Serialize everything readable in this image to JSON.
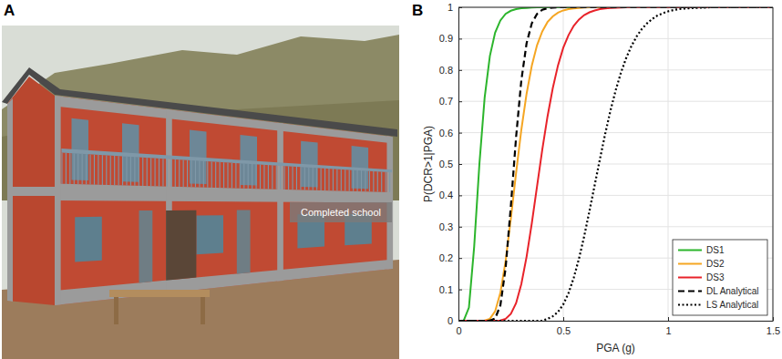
{
  "panel_labels": [
    "A",
    "B"
  ],
  "photo": {
    "caption": "Completed school"
  },
  "chart_data": {
    "type": "line",
    "x_label": "PGA (g)",
    "y_label": "P(DCR>1|PGA)",
    "x": [
      0,
      0.025,
      0.05,
      0.075,
      0.1,
      0.125,
      0.15,
      0.175,
      0.2,
      0.225,
      0.25,
      0.275,
      0.3,
      0.325,
      0.35,
      0.375,
      0.4,
      0.425,
      0.45,
      0.475,
      0.5,
      0.525,
      0.55,
      0.575,
      0.6,
      0.625,
      0.65,
      0.675,
      0.7,
      0.725,
      0.75,
      0.775,
      0.8,
      0.825,
      0.85,
      0.875,
      0.9,
      0.925,
      0.95,
      0.975,
      1,
      1.025,
      1.05,
      1.075,
      1.1,
      1.125,
      1.15,
      1.175,
      1.2,
      1.225,
      1.25,
      1.275,
      1.3,
      1.325,
      1.35,
      1.375,
      1.4,
      1.425,
      1.45,
      1.475,
      1.5
    ],
    "series": [
      {
        "name": "DS1",
        "color": "#2cb52c",
        "line_style": "solid",
        "values": [
          0,
          0.0003,
          0.042,
          0.236,
          0.5,
          0.712,
          0.845,
          0.919,
          0.958,
          0.979,
          0.989,
          0.994,
          0.997,
          0.998,
          0.999,
          1,
          1,
          1,
          1,
          1,
          1,
          1,
          1,
          1,
          1,
          1,
          1,
          1,
          1,
          1,
          1,
          1,
          1,
          1,
          1,
          1,
          1,
          1,
          1,
          1,
          1,
          1,
          1,
          1,
          1,
          1,
          1,
          1,
          1,
          1,
          1,
          1,
          1,
          1,
          1,
          1,
          1,
          1,
          1,
          1,
          1
        ]
      },
      {
        "name": "DS2",
        "color": "#f5a623",
        "line_style": "solid",
        "values": [
          0,
          0,
          0,
          0,
          0,
          0.0006,
          0.006,
          0.03,
          0.089,
          0.191,
          0.326,
          0.471,
          0.609,
          0.724,
          0.814,
          0.879,
          0.923,
          0.953,
          0.971,
          0.983,
          0.99,
          0.994,
          0.9965,
          0.998,
          0.999,
          1,
          1,
          1,
          1,
          1,
          1,
          1,
          1,
          1,
          1,
          1,
          1,
          1,
          1,
          1,
          1,
          1,
          1,
          1,
          1,
          1,
          1,
          1,
          1,
          1,
          1,
          1,
          1,
          1,
          1,
          1,
          1,
          1,
          1,
          1,
          1
        ]
      },
      {
        "name": "DS3",
        "color": "#e8232a",
        "line_style": "solid",
        "values": [
          0,
          0,
          0,
          0,
          0,
          0,
          0,
          0,
          0.001,
          0.006,
          0.022,
          0.056,
          0.117,
          0.204,
          0.311,
          0.429,
          0.546,
          0.652,
          0.742,
          0.815,
          0.871,
          0.911,
          0.941,
          0.961,
          0.975,
          0.984,
          0.99,
          0.994,
          0.996,
          0.9976,
          0.9986,
          0.999,
          1,
          1,
          1,
          1,
          1,
          1,
          1,
          1,
          1,
          1,
          1,
          1,
          1,
          1,
          1,
          1,
          1,
          1,
          1,
          1,
          1,
          1,
          1,
          1,
          1,
          1,
          1,
          1,
          1
        ]
      },
      {
        "name": "DL Analytical",
        "color": "#000000",
        "line_style": "dashed",
        "values": [
          0,
          0,
          0,
          0,
          0,
          0,
          0.0004,
          0.007,
          0.049,
          0.168,
          0.366,
          0.586,
          0.767,
          0.885,
          0.949,
          0.979,
          0.992,
          0.997,
          0.999,
          1,
          1,
          1,
          1,
          1,
          1,
          1,
          1,
          1,
          1,
          1,
          1,
          1,
          1,
          1,
          1,
          1,
          1,
          1,
          1,
          1,
          1,
          1,
          1,
          1,
          1,
          1,
          1,
          1,
          1,
          1,
          1,
          1,
          1,
          1,
          1,
          1,
          1,
          1,
          1,
          1,
          1
        ]
      },
      {
        "name": "LS Analytical",
        "color": "#000000",
        "line_style": "dotted",
        "values": [
          0,
          0,
          0,
          0,
          0,
          0,
          0,
          0,
          0,
          0,
          0,
          0,
          0,
          0,
          0,
          0,
          0,
          0.006,
          0.014,
          0.028,
          0.052,
          0.088,
          0.137,
          0.198,
          0.27,
          0.35,
          0.433,
          0.516,
          0.596,
          0.67,
          0.735,
          0.791,
          0.838,
          0.876,
          0.907,
          0.931,
          0.949,
          0.963,
          0.974,
          0.981,
          0.987,
          0.991,
          0.994,
          0.9956,
          0.997,
          0.998,
          0.9986,
          0.999,
          1,
          1,
          1,
          1,
          1,
          1,
          1,
          1,
          1,
          1,
          1,
          1,
          1
        ]
      }
    ],
    "xlim": [
      0,
      1.5
    ],
    "ylim": [
      0,
      1
    ],
    "xticks": [
      0,
      0.5,
      1,
      1.5
    ],
    "yticks": [
      0,
      0.1,
      0.2,
      0.3,
      0.4,
      0.5,
      0.6,
      0.7,
      0.8,
      0.9,
      1
    ],
    "grid": true,
    "legend": "lower right"
  }
}
